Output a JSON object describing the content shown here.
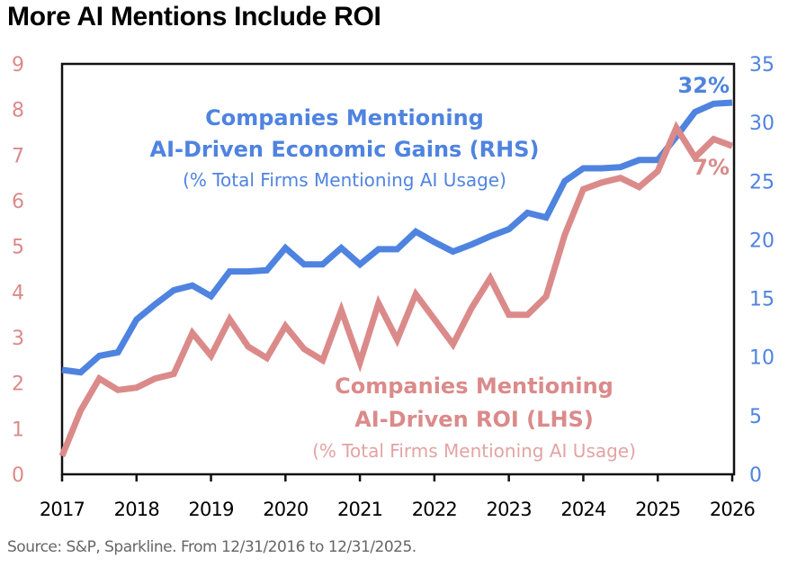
{
  "chart_data": {
    "type": "line",
    "title": "More AI Mentions Include ROI",
    "source": "Source: S&P, Sparkline. From 12/31/2016 to 12/31/2025.",
    "xlabel": "",
    "x_ticks": [
      "2017",
      "2018",
      "2019",
      "2020",
      "2021",
      "2022",
      "2023",
      "2024",
      "2025",
      "2026"
    ],
    "xlim": [
      2017,
      2026
    ],
    "x": [
      2017.0,
      2017.25,
      2017.5,
      2017.75,
      2018.0,
      2018.25,
      2018.5,
      2018.75,
      2019.0,
      2019.25,
      2019.5,
      2019.75,
      2020.0,
      2020.25,
      2020.5,
      2020.75,
      2021.0,
      2021.25,
      2021.5,
      2021.75,
      2022.0,
      2022.25,
      2022.5,
      2022.75,
      2023.0,
      2023.25,
      2023.5,
      2023.75,
      2024.0,
      2024.25,
      2024.5,
      2024.75,
      2025.0,
      2025.25,
      2025.5,
      2025.75,
      2026.0
    ],
    "left_axis": {
      "label": "Companies Mentioning AI-Driven ROI (LHS)",
      "ylim": [
        0,
        9
      ],
      "ticks": [
        "0",
        "1",
        "2",
        "3",
        "4",
        "5",
        "6",
        "7",
        "8",
        "9"
      ],
      "color": "#db8a8a"
    },
    "right_axis": {
      "label": "Companies Mentioning AI-Driven Economic Gains (RHS)",
      "ylim": [
        0,
        35
      ],
      "ticks": [
        "0",
        "5",
        "10",
        "15",
        "20",
        "25",
        "30",
        "35"
      ],
      "color": "#4f83e0"
    },
    "series": [
      {
        "name": "Companies Mentioning AI-Driven Economic Gains (RHS)",
        "axis": "right",
        "color": "#4f83e0",
        "values": [
          8.9,
          8.7,
          10.1,
          10.4,
          13.2,
          14.5,
          15.7,
          16.1,
          15.2,
          17.3,
          17.3,
          17.4,
          19.3,
          17.9,
          17.9,
          19.3,
          17.9,
          19.2,
          19.2,
          20.7,
          19.8,
          19.0,
          19.6,
          20.3,
          20.9,
          22.3,
          21.9,
          25.0,
          26.1,
          26.1,
          26.2,
          26.8,
          26.8,
          28.8,
          30.9,
          31.6,
          31.7
        ]
      },
      {
        "name": "Companies Mentioning AI-Driven ROI (LHS)",
        "axis": "left",
        "color": "#db8a8a",
        "values": [
          0.4,
          1.4,
          2.1,
          1.85,
          1.9,
          2.1,
          2.2,
          3.1,
          2.6,
          3.4,
          2.8,
          2.55,
          3.25,
          2.75,
          2.5,
          3.6,
          2.45,
          3.75,
          2.95,
          3.95,
          3.4,
          2.85,
          3.65,
          4.3,
          3.5,
          3.5,
          3.9,
          5.25,
          6.25,
          6.4,
          6.5,
          6.3,
          6.65,
          7.6,
          6.95,
          7.35,
          7.2
        ]
      }
    ],
    "annotations": {
      "blue_title_1": "Companies Mentioning",
      "blue_title_2": "AI-Driven Economic Gains (RHS)",
      "blue_subtitle": "(% Total Firms Mentioning AI Usage)",
      "red_title_1": "Companies Mentioning",
      "red_title_2": "AI-Driven ROI (LHS)",
      "red_subtitle": "(% Total Firms Mentioning AI Usage)",
      "blue_end_label": "32%",
      "red_end_label": "7%"
    },
    "grid": false,
    "legend": "none"
  }
}
